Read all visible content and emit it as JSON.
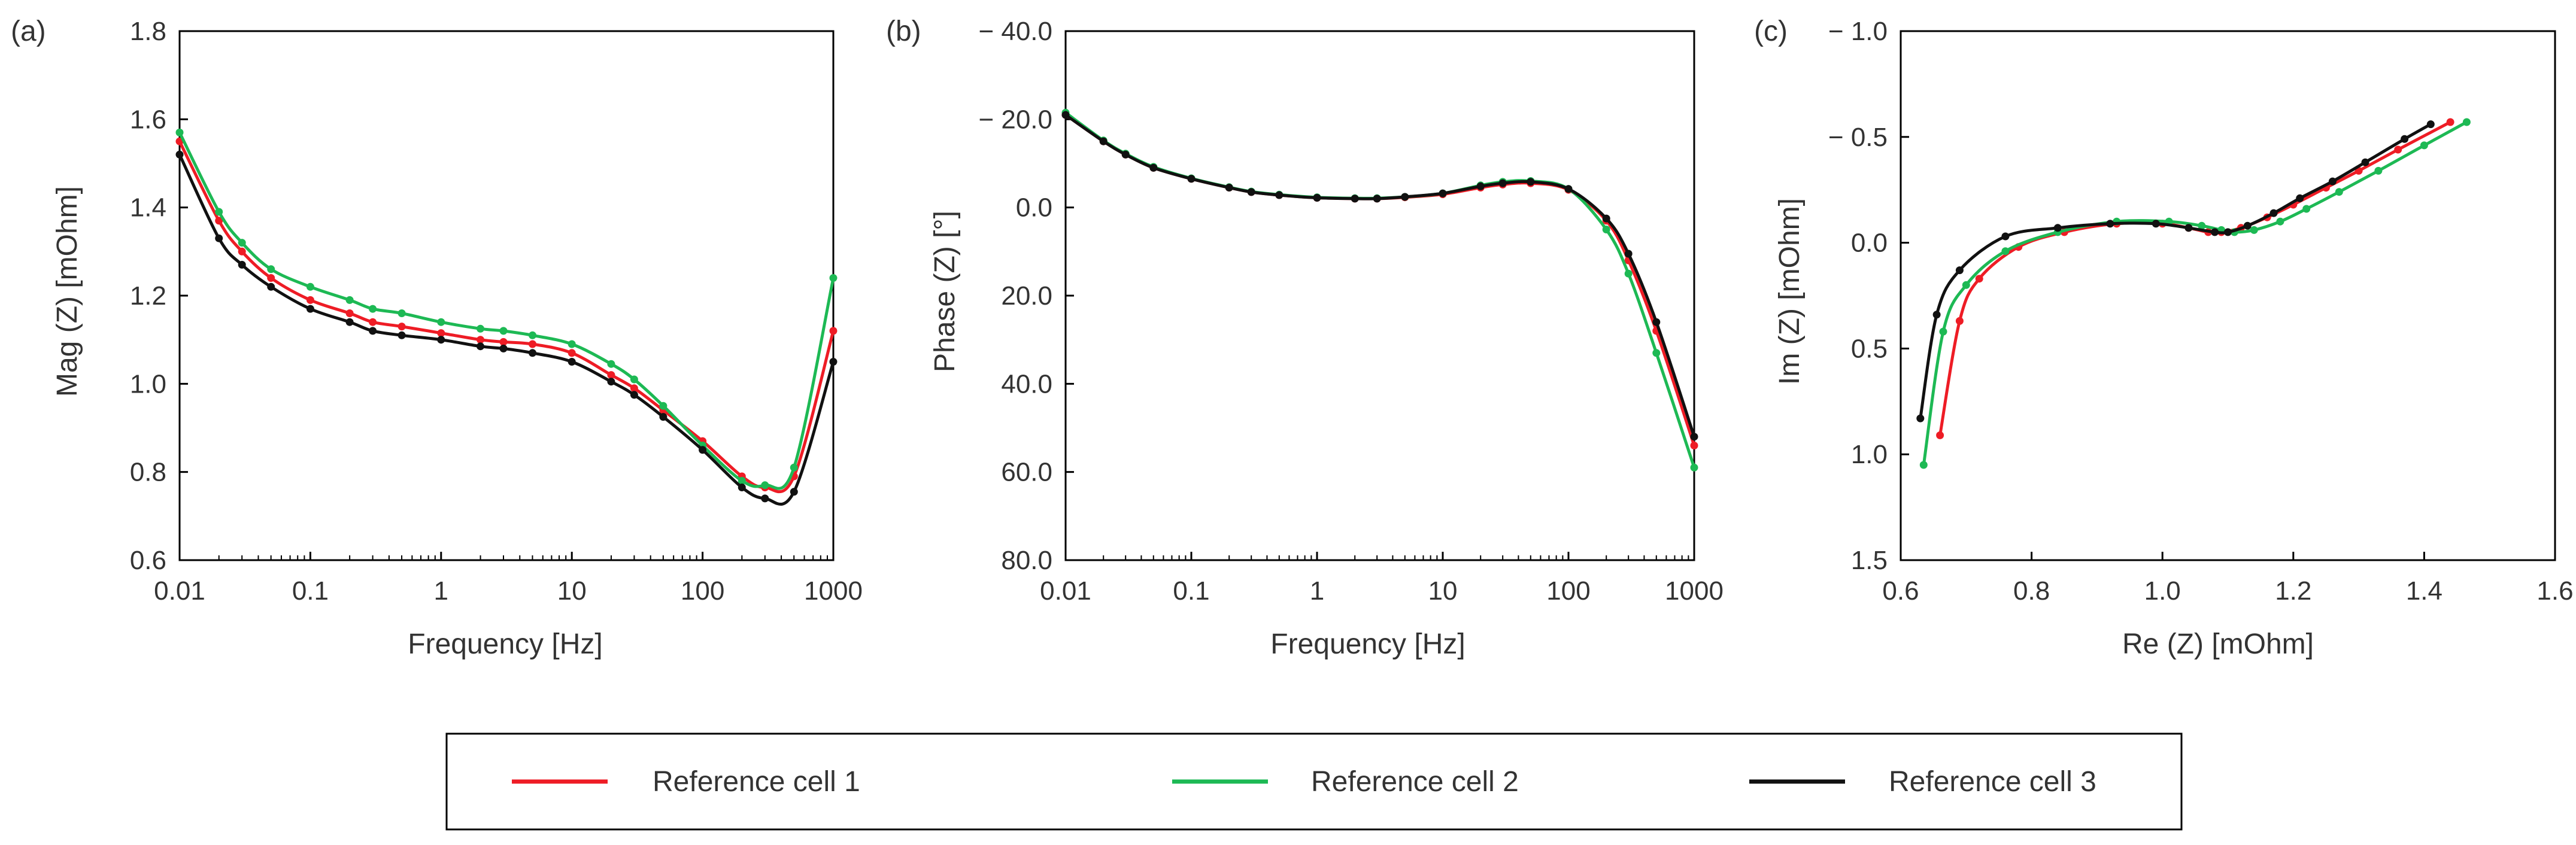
{
  "legend": [
    {
      "name": "Reference cell 1",
      "color": "#ee1c25"
    },
    {
      "name": "Reference cell 2",
      "color": "#1db954"
    },
    {
      "name": "Reference cell 3",
      "color": "#111111"
    }
  ],
  "chart_data": [
    {
      "panel": "(a)",
      "type": "line",
      "xscale": "log",
      "xlabel": "Frequency [Hz]",
      "ylabel": "Mag (Z) [mOhm]",
      "xlim": [
        0.01,
        1000
      ],
      "ylim": [
        0.6,
        1.8
      ],
      "xticks": [
        0.01,
        0.1,
        1,
        10,
        100,
        1000
      ],
      "xtick_labels": [
        "0.01",
        "0.1",
        "1",
        "10",
        "100",
        "1000"
      ],
      "yticks": [
        0.6,
        0.8,
        1.0,
        1.2,
        1.4,
        1.6,
        1.8
      ],
      "ytick_labels": [
        "0.6",
        "0.8",
        "1.0",
        "1.2",
        "1.4",
        "1.6",
        "1.8"
      ],
      "x": [
        0.01,
        0.02,
        0.03,
        0.05,
        0.1,
        0.2,
        0.3,
        0.5,
        1,
        2,
        3,
        5,
        10,
        20,
        30,
        50,
        100,
        200,
        300,
        500,
        1000
      ],
      "series": [
        {
          "name": "Reference cell 1",
          "color": "#ee1c25",
          "values": [
            1.55,
            1.37,
            1.3,
            1.24,
            1.19,
            1.16,
            1.14,
            1.13,
            1.115,
            1.1,
            1.095,
            1.09,
            1.07,
            1.02,
            0.99,
            0.94,
            0.87,
            0.79,
            0.765,
            0.79,
            1.12
          ]
        },
        {
          "name": "Reference cell 2",
          "color": "#1db954",
          "values": [
            1.57,
            1.39,
            1.32,
            1.26,
            1.22,
            1.19,
            1.17,
            1.16,
            1.14,
            1.125,
            1.12,
            1.11,
            1.09,
            1.045,
            1.01,
            0.95,
            0.86,
            0.78,
            0.77,
            0.81,
            1.24
          ]
        },
        {
          "name": "Reference cell 3",
          "color": "#111111",
          "values": [
            1.52,
            1.33,
            1.27,
            1.22,
            1.17,
            1.14,
            1.12,
            1.11,
            1.1,
            1.085,
            1.08,
            1.07,
            1.05,
            1.005,
            0.975,
            0.925,
            0.85,
            0.765,
            0.74,
            0.755,
            1.05
          ]
        }
      ]
    },
    {
      "panel": "(b)",
      "type": "line",
      "xscale": "log",
      "xlabel": "Frequency [Hz]",
      "ylabel": "Phase (Z) [°]",
      "xlim": [
        0.01,
        1000
      ],
      "ylim": [
        -40.0,
        80.0
      ],
      "y_inverted": true,
      "xticks": [
        0.01,
        0.1,
        1,
        10,
        100,
        1000
      ],
      "xtick_labels": [
        "0.01",
        "0.1",
        "1",
        "10",
        "100",
        "1000"
      ],
      "yticks": [
        -40,
        -20,
        0,
        20,
        40,
        60,
        80
      ],
      "ytick_labels": [
        "− 40.0",
        "− 20.0",
        "0.0",
        "20.0",
        "40.0",
        "60.0",
        "80.0"
      ],
      "x": [
        0.01,
        0.02,
        0.03,
        0.05,
        0.1,
        0.2,
        0.3,
        0.5,
        1,
        2,
        3,
        5,
        10,
        20,
        30,
        50,
        100,
        200,
        300,
        500,
        1000
      ],
      "series": [
        {
          "name": "Reference cell 1",
          "color": "#ee1c25",
          "values": [
            -21.0,
            -15.0,
            -12.0,
            -9.0,
            -6.5,
            -4.5,
            -3.5,
            -2.8,
            -2.2,
            -2.0,
            -2.0,
            -2.3,
            -3.0,
            -4.5,
            -5.2,
            -5.5,
            -4.0,
            3.0,
            12.0,
            28.0,
            54.0
          ]
        },
        {
          "name": "Reference cell 2",
          "color": "#1db954",
          "values": [
            -21.5,
            -15.2,
            -12.2,
            -9.2,
            -6.6,
            -4.6,
            -3.6,
            -2.9,
            -2.3,
            -2.1,
            -2.1,
            -2.4,
            -3.2,
            -5.0,
            -5.8,
            -6.0,
            -4.2,
            5.0,
            15.0,
            33.0,
            59.0
          ]
        },
        {
          "name": "Reference cell 3",
          "color": "#111111",
          "values": [
            -21.0,
            -15.0,
            -12.0,
            -9.0,
            -6.5,
            -4.5,
            -3.5,
            -2.8,
            -2.2,
            -2.0,
            -2.0,
            -2.4,
            -3.2,
            -4.8,
            -5.5,
            -5.8,
            -4.2,
            2.5,
            10.5,
            26.0,
            52.0
          ]
        }
      ]
    },
    {
      "panel": "(c)",
      "type": "scatter-line",
      "xlabel": "Re (Z) [mOhm]",
      "ylabel": "Im (Z) [mOhm]",
      "xlim": [
        0.6,
        1.6
      ],
      "ylim": [
        -1.0,
        1.5
      ],
      "y_inverted": true,
      "xticks": [
        0.6,
        0.8,
        1.0,
        1.2,
        1.4,
        1.6
      ],
      "xtick_labels": [
        "0.6",
        "0.8",
        "1.0",
        "1.2",
        "1.4",
        "1.6"
      ],
      "yticks": [
        -1.0,
        -0.5,
        0.0,
        0.5,
        1.0,
        1.5
      ],
      "ytick_labels": [
        "− 1.0",
        "− 0.5",
        "0.0",
        "0.5",
        "1.0",
        "1.5"
      ],
      "series": [
        {
          "name": "Reference cell 1",
          "color": "#ee1c25",
          "x": [
            0.66,
            0.69,
            0.72,
            0.78,
            0.85,
            0.93,
            1.0,
            1.04,
            1.07,
            1.09,
            1.12,
            1.16,
            1.2,
            1.25,
            1.3,
            1.36,
            1.44
          ],
          "y": [
            0.91,
            0.37,
            0.17,
            0.02,
            -0.05,
            -0.09,
            -0.09,
            -0.07,
            -0.05,
            -0.05,
            -0.07,
            -0.12,
            -0.18,
            -0.26,
            -0.34,
            -0.44,
            -0.57
          ]
        },
        {
          "name": "Reference cell 2",
          "color": "#1db954",
          "x": [
            0.635,
            0.665,
            0.7,
            0.76,
            0.84,
            0.93,
            1.01,
            1.06,
            1.09,
            1.11,
            1.14,
            1.18,
            1.22,
            1.27,
            1.33,
            1.4,
            1.465
          ],
          "y": [
            1.05,
            0.42,
            0.2,
            0.04,
            -0.05,
            -0.1,
            -0.1,
            -0.08,
            -0.06,
            -0.05,
            -0.06,
            -0.1,
            -0.16,
            -0.24,
            -0.34,
            -0.46,
            -0.57
          ]
        },
        {
          "name": "Reference cell 3",
          "color": "#111111",
          "x": [
            0.63,
            0.655,
            0.69,
            0.76,
            0.84,
            0.92,
            0.99,
            1.04,
            1.08,
            1.1,
            1.13,
            1.17,
            1.21,
            1.26,
            1.31,
            1.37,
            1.41
          ],
          "y": [
            0.83,
            0.34,
            0.13,
            -0.03,
            -0.07,
            -0.09,
            -0.09,
            -0.07,
            -0.05,
            -0.05,
            -0.08,
            -0.14,
            -0.21,
            -0.29,
            -0.38,
            -0.49,
            -0.56
          ]
        }
      ]
    }
  ]
}
